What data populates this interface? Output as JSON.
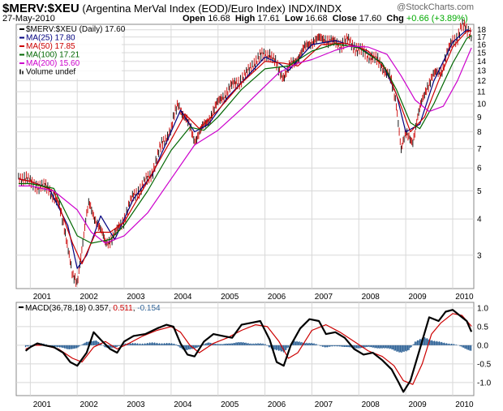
{
  "header": {
    "symbol": "$MERV:$XEU",
    "description": "(Argentina MerVal Index (EOD)/Euro Index)",
    "exchange": "INDX/INDX",
    "date": "27-May-2010",
    "open_label": "Open",
    "open": "16.68",
    "high_label": "High",
    "high": "17.61",
    "low_label": "Low",
    "low": "16.68",
    "close_label": "Close",
    "close": "17.60",
    "chg_label": "Chg",
    "chg": "+0.66 (+3.89%)",
    "watermark": "@StockCharts.com"
  },
  "colors": {
    "price": "#cc0000",
    "ma25": "#00007f",
    "ma50": "#cc0000",
    "ma100": "#006600",
    "ma200": "#cc00cc",
    "macd": "#000000",
    "signal": "#cc0000",
    "hist": "#336699",
    "grid": "#d8d8d8"
  },
  "chart_data": [
    {
      "type": "line",
      "title": "$MERV:$XEU (Daily) 17.60",
      "x_axis_labels": [
        "2001",
        "2002",
        "2003",
        "2004",
        "2005",
        "2006",
        "2007",
        "2008",
        "2009",
        "2010"
      ],
      "xlim": [
        2000.7,
        2010.45
      ],
      "y_ticks": [
        3,
        4,
        5,
        6,
        7,
        8,
        9,
        10,
        11,
        12,
        13,
        14,
        15,
        16,
        17,
        18
      ],
      "ylim": [
        2.3,
        18.8
      ],
      "y_scale": "log",
      "grid": true,
      "legend_placement": "top-left",
      "legend": [
        {
          "key": "price",
          "label": "$MERV:$XEU (Daily) 17.60"
        },
        {
          "key": "ma25",
          "label": "MA(25) 17.80"
        },
        {
          "key": "ma50",
          "label": "MA(50) 17.85"
        },
        {
          "key": "ma100",
          "label": "MA(100) 17.21"
        },
        {
          "key": "ma200",
          "label": "MA(200) 15.60"
        },
        {
          "key": "volume",
          "label": "Volume undef"
        }
      ],
      "series": [
        {
          "name": "price",
          "x": [
            2000.75,
            2000.9,
            2001.0,
            2001.2,
            2001.4,
            2001.6,
            2001.75,
            2001.9,
            2002.0,
            2002.1,
            2002.25,
            2002.45,
            2002.6,
            2002.8,
            2003.0,
            2003.2,
            2003.4,
            2003.6,
            2003.8,
            2004.0,
            2004.15,
            2004.3,
            2004.5,
            2004.6,
            2004.75,
            2004.9,
            2005.0,
            2005.15,
            2005.3,
            2005.45,
            2005.6,
            2005.75,
            2005.9,
            2006.1,
            2006.3,
            2006.4,
            2006.55,
            2006.7,
            2006.85,
            2007.0,
            2007.15,
            2007.3,
            2007.45,
            2007.6,
            2007.75,
            2007.9,
            2008.1,
            2008.3,
            2008.5,
            2008.65,
            2008.8,
            2008.9,
            2009.0,
            2009.15,
            2009.3,
            2009.45,
            2009.6,
            2009.75,
            2009.9,
            2010.0,
            2010.1,
            2010.2,
            2010.3,
            2010.4
          ],
          "y": [
            5.5,
            5.6,
            5.3,
            5.2,
            5.1,
            4.5,
            3.6,
            2.5,
            2.4,
            3.2,
            4.5,
            3.8,
            3.3,
            3.5,
            4.0,
            4.8,
            5.2,
            5.8,
            7.2,
            8.2,
            10.0,
            9.0,
            7.5,
            8.0,
            8.5,
            9.5,
            10.0,
            10.8,
            11.5,
            12.0,
            12.5,
            13.8,
            14.5,
            15.0,
            13.0,
            12.5,
            13.5,
            14.5,
            15.5,
            16.5,
            16.6,
            16.8,
            16.2,
            16.0,
            16.5,
            15.8,
            15.0,
            14.5,
            13.5,
            12.5,
            10.0,
            7.0,
            7.8,
            7.5,
            9.5,
            11.5,
            12.5,
            13.0,
            15.0,
            16.5,
            17.0,
            18.5,
            18.0,
            17.6
          ]
        },
        {
          "name": "ma25",
          "x": [
            2000.75,
            2001.0,
            2001.4,
            2001.8,
            2002.0,
            2002.2,
            2002.5,
            2002.8,
            2003.2,
            2003.6,
            2004.0,
            2004.2,
            2004.5,
            2004.8,
            2005.2,
            2005.6,
            2006.0,
            2006.3,
            2006.5,
            2007.0,
            2007.5,
            2008.0,
            2008.5,
            2008.8,
            2009.0,
            2009.3,
            2009.6,
            2010.0,
            2010.3,
            2010.4
          ],
          "y": [
            5.5,
            5.4,
            5.1,
            3.8,
            2.7,
            3.0,
            4.1,
            3.4,
            4.7,
            5.7,
            8.0,
            9.5,
            8.0,
            8.5,
            10.5,
            12.3,
            14.5,
            13.8,
            13.0,
            16.0,
            16.5,
            15.7,
            13.8,
            10.8,
            8.0,
            8.5,
            12.0,
            16.3,
            18.0,
            17.8
          ]
        },
        {
          "name": "ma50",
          "x": [
            2000.75,
            2001.0,
            2001.5,
            2001.9,
            2002.1,
            2002.4,
            2002.7,
            2003.0,
            2003.5,
            2004.0,
            2004.3,
            2004.6,
            2005.0,
            2005.5,
            2006.0,
            2006.4,
            2006.7,
            2007.2,
            2007.7,
            2008.2,
            2008.6,
            2008.9,
            2009.1,
            2009.4,
            2009.7,
            2010.0,
            2010.3,
            2010.4
          ],
          "y": [
            5.5,
            5.4,
            5.0,
            3.3,
            2.8,
            3.6,
            3.6,
            3.9,
            5.4,
            7.5,
            9.2,
            8.2,
            9.5,
            11.8,
            14.0,
            13.8,
            13.5,
            16.0,
            16.2,
            15.2,
            13.0,
            9.8,
            8.0,
            9.0,
            12.0,
            15.7,
            17.8,
            17.85
          ]
        },
        {
          "name": "ma100",
          "x": [
            2000.75,
            2001.0,
            2001.5,
            2002.0,
            2002.3,
            2002.7,
            2003.0,
            2003.5,
            2004.0,
            2004.4,
            2004.7,
            2005.0,
            2005.5,
            2006.0,
            2006.5,
            2007.0,
            2007.5,
            2008.0,
            2008.5,
            2008.8,
            2009.1,
            2009.3,
            2009.6,
            2010.0,
            2010.3,
            2010.4
          ],
          "y": [
            5.3,
            5.3,
            5.1,
            3.5,
            3.3,
            3.4,
            3.8,
            5.0,
            6.9,
            8.3,
            8.1,
            9.0,
            11.2,
            13.2,
            13.5,
            15.2,
            16.1,
            15.6,
            13.8,
            11.2,
            8.6,
            8.2,
            10.0,
            13.8,
            16.8,
            17.2
          ]
        },
        {
          "name": "ma200",
          "x": [
            2000.75,
            2001.0,
            2001.5,
            2002.0,
            2002.3,
            2002.6,
            2003.0,
            2003.5,
            2004.0,
            2004.5,
            2005.0,
            2005.5,
            2006.0,
            2006.3,
            2006.7,
            2007.0,
            2007.5,
            2007.8,
            2008.2,
            2008.6,
            2008.9,
            2009.2,
            2009.5,
            2009.8,
            2010.1,
            2010.4
          ],
          "y": [
            5.2,
            5.2,
            5.0,
            4.3,
            3.6,
            3.3,
            3.5,
            4.2,
            5.5,
            7.2,
            8.1,
            9.6,
            11.5,
            12.8,
            13.8,
            14.2,
            15.3,
            15.8,
            15.7,
            14.8,
            12.5,
            10.3,
            9.4,
            9.8,
            12.0,
            15.6
          ]
        }
      ]
    },
    {
      "type": "line",
      "title": "MACD(36,78,18)",
      "x_axis_labels": [
        "2001",
        "2002",
        "2003",
        "2004",
        "2005",
        "2006",
        "2007",
        "2008",
        "2009",
        "2010"
      ],
      "xlim": [
        2000.7,
        2010.45
      ],
      "y_ticks": [
        -1.0,
        -0.5,
        0.0,
        0.5,
        1.0
      ],
      "ylim": [
        -1.35,
        1.15
      ],
      "grid": true,
      "legend": [
        {
          "key": "macd",
          "label": "MACD(36,78,18) 0.357"
        },
        {
          "key": "signal",
          "label": "0.511"
        },
        {
          "key": "hist",
          "label": "-0.154"
        }
      ],
      "series": [
        {
          "name": "macd",
          "x": [
            2000.9,
            2001.0,
            2001.15,
            2001.3,
            2001.5,
            2001.7,
            2001.85,
            2002.0,
            2002.2,
            2002.35,
            2002.5,
            2002.7,
            2002.85,
            2003.0,
            2003.2,
            2003.45,
            2003.7,
            2003.9,
            2004.05,
            2004.2,
            2004.35,
            2004.5,
            2004.7,
            2004.9,
            2005.1,
            2005.3,
            2005.5,
            2005.7,
            2005.9,
            2006.1,
            2006.25,
            2006.4,
            2006.55,
            2006.75,
            2006.95,
            2007.15,
            2007.3,
            2007.5,
            2007.7,
            2007.9,
            2008.1,
            2008.3,
            2008.5,
            2008.7,
            2008.85,
            2008.95,
            2009.1,
            2009.3,
            2009.5,
            2009.7,
            2009.85,
            2010.0,
            2010.15,
            2010.3,
            2010.4
          ],
          "y": [
            -0.15,
            -0.05,
            0.05,
            0.0,
            -0.05,
            -0.2,
            -0.45,
            -0.55,
            -0.2,
            0.35,
            0.15,
            -0.1,
            -0.2,
            0.1,
            0.25,
            0.3,
            0.45,
            0.55,
            0.5,
            0.05,
            -0.25,
            -0.3,
            0.1,
            0.3,
            0.25,
            0.2,
            0.55,
            0.6,
            0.65,
            0.15,
            -0.45,
            -0.55,
            0.0,
            0.45,
            0.7,
            0.65,
            0.3,
            0.35,
            0.2,
            -0.1,
            -0.25,
            -0.2,
            -0.4,
            -0.65,
            -1.0,
            -1.25,
            -0.95,
            -0.1,
            0.75,
            0.65,
            0.9,
            0.95,
            0.8,
            0.65,
            0.36
          ]
        },
        {
          "name": "signal",
          "x": [
            2000.9,
            2001.1,
            2001.3,
            2001.6,
            2001.9,
            2002.1,
            2002.35,
            2002.6,
            2002.85,
            2003.1,
            2003.4,
            2003.7,
            2004.0,
            2004.2,
            2004.4,
            2004.6,
            2004.9,
            2005.2,
            2005.5,
            2005.8,
            2006.05,
            2006.3,
            2006.5,
            2006.7,
            2007.0,
            2007.3,
            2007.6,
            2007.9,
            2008.2,
            2008.5,
            2008.75,
            2008.95,
            2009.15,
            2009.35,
            2009.55,
            2009.75,
            2010.0,
            2010.2,
            2010.4
          ],
          "y": [
            -0.1,
            0.0,
            0.0,
            -0.1,
            -0.35,
            -0.45,
            -0.05,
            0.1,
            -0.1,
            0.05,
            0.25,
            0.4,
            0.5,
            0.35,
            0.0,
            -0.2,
            0.05,
            0.2,
            0.4,
            0.55,
            0.5,
            0.1,
            -0.35,
            -0.2,
            0.4,
            0.55,
            0.35,
            0.1,
            -0.15,
            -0.3,
            -0.55,
            -0.95,
            -1.05,
            -0.5,
            0.3,
            0.6,
            0.85,
            0.8,
            0.51
          ]
        },
        {
          "name": "hist",
          "x": [
            2000.9,
            2001.2,
            2001.5,
            2001.8,
            2002.0,
            2002.2,
            2002.4,
            2002.6,
            2002.8,
            2003.0,
            2003.3,
            2003.6,
            2003.9,
            2004.1,
            2004.3,
            2004.5,
            2004.8,
            2005.1,
            2005.4,
            2005.7,
            2006.0,
            2006.2,
            2006.4,
            2006.6,
            2006.8,
            2007.0,
            2007.3,
            2007.6,
            2007.9,
            2008.2,
            2008.5,
            2008.7,
            2008.9,
            2009.05,
            2009.2,
            2009.4,
            2009.6,
            2009.8,
            2010.0,
            2010.2,
            2010.4
          ],
          "y": [
            -0.05,
            0.05,
            -0.03,
            -0.1,
            -0.08,
            0.1,
            0.12,
            -0.05,
            -0.08,
            0.05,
            0.04,
            0.06,
            0.05,
            0.03,
            -0.15,
            -0.08,
            0.07,
            0.02,
            0.08,
            0.05,
            0.03,
            -0.12,
            -0.18,
            0.1,
            0.08,
            0.05,
            -0.05,
            -0.02,
            -0.08,
            -0.05,
            -0.08,
            -0.1,
            -0.2,
            -0.15,
            0.1,
            0.2,
            0.12,
            0.06,
            0.04,
            -0.05,
            -0.15
          ]
        }
      ]
    }
  ]
}
